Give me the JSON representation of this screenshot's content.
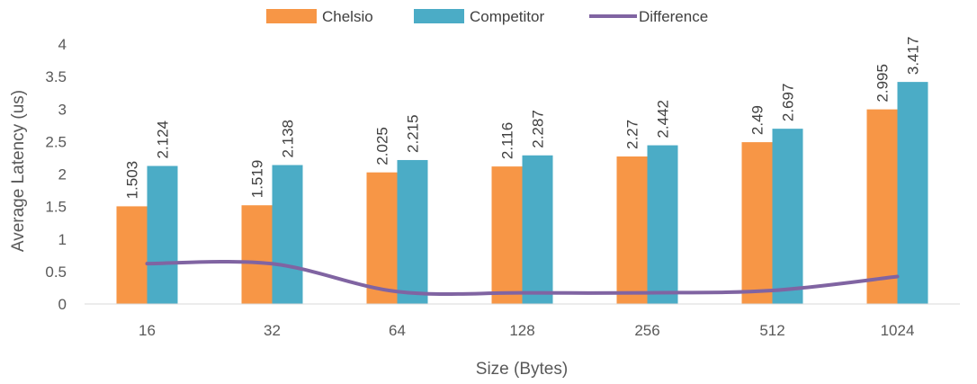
{
  "chart_data": {
    "type": "bar",
    "title": "",
    "xlabel": "Size (Bytes)",
    "ylabel": "Average Latency (us)",
    "categories": [
      "16",
      "32",
      "64",
      "128",
      "256",
      "512",
      "1024"
    ],
    "ylim": [
      0,
      4
    ],
    "yticks": [
      "0",
      "0.5",
      "1",
      "1.5",
      "2",
      "2.5",
      "3",
      "3.5",
      "4"
    ],
    "grid": false,
    "legend_position": "top",
    "series": [
      {
        "name": "Chelsio",
        "kind": "bar",
        "color": "#F79646",
        "values": [
          1.503,
          1.519,
          2.025,
          2.116,
          2.27,
          2.49,
          2.995
        ],
        "labels": [
          "1.503",
          "1.519",
          "2.025",
          "2.116",
          "2.27",
          "2.49",
          "2.995"
        ]
      },
      {
        "name": "Competitor",
        "kind": "bar",
        "color": "#4BACC6",
        "values": [
          2.124,
          2.138,
          2.215,
          2.287,
          2.442,
          2.697,
          3.417
        ],
        "labels": [
          "2.124",
          "2.138",
          "2.215",
          "2.287",
          "2.442",
          "2.697",
          "3.417"
        ]
      },
      {
        "name": "Difference",
        "kind": "line",
        "color": "#8064A2",
        "values": [
          0.621,
          0.619,
          0.19,
          0.171,
          0.172,
          0.207,
          0.422
        ]
      }
    ]
  }
}
